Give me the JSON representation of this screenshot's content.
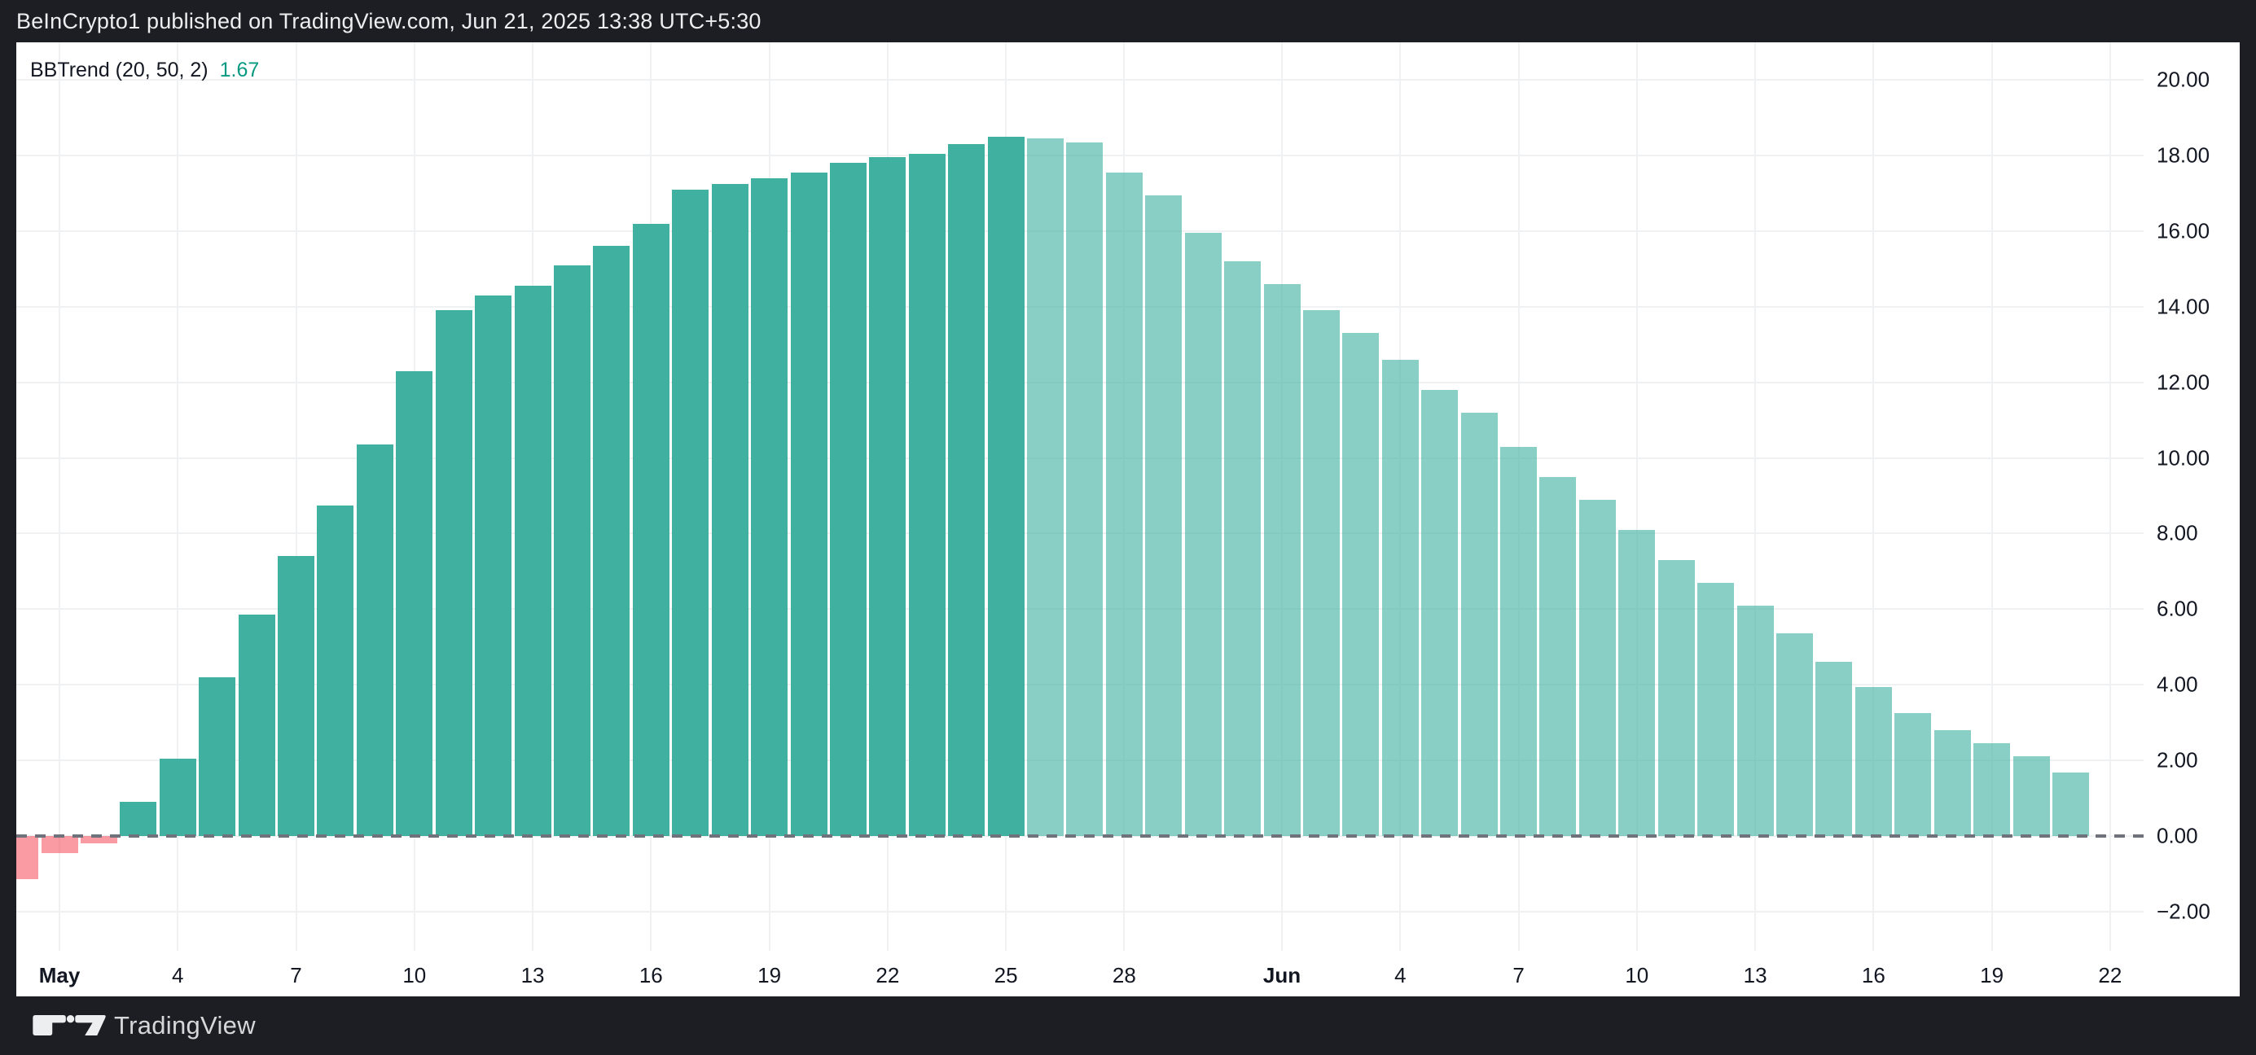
{
  "header": {
    "title": "BeInCrypto1 published on TradingView.com, Jun 21, 2025 13:38 UTC+5:30"
  },
  "indicator": {
    "label": "BBTrend (20, 50, 2)",
    "value": "1.67"
  },
  "footer": {
    "brand": "TradingView",
    "logo_icon": "tradingview-logo"
  },
  "colors": {
    "bg_dark": "#1C1E24",
    "panel_bg": "#FFFFFF",
    "text_light": "#EDEEF0",
    "text_dark": "#131722",
    "footer_text": "#D6D7D9",
    "value_green": "#089981",
    "bar_rise": "#40B1A1",
    "bar_fall": "rgba(64,177,161,0.62)",
    "bar_neg": "rgba(247,83,97,0.58)",
    "grid": "#F0F1F3",
    "zero_line": "#6F727B"
  },
  "chart_data": {
    "type": "bar",
    "title": "BBTrend (20, 50, 2)",
    "ylabel": "",
    "xlabel": "",
    "grid": true,
    "ylim": [
      -3.0,
      21.0
    ],
    "zero_line_value": 0,
    "y_ticks": [
      {
        "value": 20,
        "label": "20.00"
      },
      {
        "value": 18,
        "label": "18.00"
      },
      {
        "value": 16,
        "label": "16.00"
      },
      {
        "value": 14,
        "label": "14.00"
      },
      {
        "value": 12,
        "label": "12.00"
      },
      {
        "value": 10,
        "label": "10.00"
      },
      {
        "value": 8,
        "label": "8.00"
      },
      {
        "value": 6,
        "label": "6.00"
      },
      {
        "value": 4,
        "label": "4.00"
      },
      {
        "value": 2,
        "label": "2.00"
      },
      {
        "value": 0,
        "label": "0.00"
      },
      {
        "value": -2,
        "label": "−2.00"
      }
    ],
    "x_ticks": [
      {
        "index": 1,
        "label": "May",
        "bold": true
      },
      {
        "index": 4,
        "label": "4",
        "bold": false
      },
      {
        "index": 7,
        "label": "7",
        "bold": false
      },
      {
        "index": 10,
        "label": "10",
        "bold": false
      },
      {
        "index": 13,
        "label": "13",
        "bold": false
      },
      {
        "index": 16,
        "label": "16",
        "bold": false
      },
      {
        "index": 19,
        "label": "19",
        "bold": false
      },
      {
        "index": 22,
        "label": "22",
        "bold": false
      },
      {
        "index": 25,
        "label": "25",
        "bold": false
      },
      {
        "index": 28,
        "label": "28",
        "bold": false
      },
      {
        "index": 32,
        "label": "Jun",
        "bold": true
      },
      {
        "index": 35,
        "label": "4",
        "bold": false
      },
      {
        "index": 38,
        "label": "7",
        "bold": false
      },
      {
        "index": 41,
        "label": "10",
        "bold": false
      },
      {
        "index": 44,
        "label": "13",
        "bold": false
      },
      {
        "index": 47,
        "label": "16",
        "bold": false
      },
      {
        "index": 50,
        "label": "19",
        "bold": false
      },
      {
        "index": 53,
        "label": "22",
        "bold": false
      }
    ],
    "bars": [
      {
        "date": "Apr 30",
        "value": -1.15,
        "state": "neg"
      },
      {
        "date": "May 1",
        "value": -0.45,
        "state": "neg"
      },
      {
        "date": "May 2",
        "value": -0.2,
        "state": "neg"
      },
      {
        "date": "May 3",
        "value": 0.9,
        "state": "rise"
      },
      {
        "date": "May 4",
        "value": 2.05,
        "state": "rise"
      },
      {
        "date": "May 5",
        "value": 4.2,
        "state": "rise"
      },
      {
        "date": "May 6",
        "value": 5.85,
        "state": "rise"
      },
      {
        "date": "May 7",
        "value": 7.4,
        "state": "rise"
      },
      {
        "date": "May 8",
        "value": 8.75,
        "state": "rise"
      },
      {
        "date": "May 9",
        "value": 10.35,
        "state": "rise"
      },
      {
        "date": "May 10",
        "value": 12.3,
        "state": "rise"
      },
      {
        "date": "May 11",
        "value": 13.9,
        "state": "rise"
      },
      {
        "date": "May 12",
        "value": 14.3,
        "state": "rise"
      },
      {
        "date": "May 13",
        "value": 14.55,
        "state": "rise"
      },
      {
        "date": "May 14",
        "value": 15.1,
        "state": "rise"
      },
      {
        "date": "May 15",
        "value": 15.6,
        "state": "rise"
      },
      {
        "date": "May 16",
        "value": 16.2,
        "state": "rise"
      },
      {
        "date": "May 17",
        "value": 17.1,
        "state": "rise"
      },
      {
        "date": "May 18",
        "value": 17.25,
        "state": "rise"
      },
      {
        "date": "May 19",
        "value": 17.4,
        "state": "rise"
      },
      {
        "date": "May 20",
        "value": 17.55,
        "state": "rise"
      },
      {
        "date": "May 21",
        "value": 17.8,
        "state": "rise"
      },
      {
        "date": "May 22",
        "value": 17.95,
        "state": "rise"
      },
      {
        "date": "May 23",
        "value": 18.05,
        "state": "rise"
      },
      {
        "date": "May 24",
        "value": 18.3,
        "state": "rise"
      },
      {
        "date": "May 25",
        "value": 18.5,
        "state": "rise"
      },
      {
        "date": "May 26",
        "value": 18.45,
        "state": "fall"
      },
      {
        "date": "May 27",
        "value": 18.35,
        "state": "fall"
      },
      {
        "date": "May 28",
        "value": 17.55,
        "state": "fall"
      },
      {
        "date": "May 29",
        "value": 16.95,
        "state": "fall"
      },
      {
        "date": "May 30",
        "value": 15.95,
        "state": "fall"
      },
      {
        "date": "May 31",
        "value": 15.2,
        "state": "fall"
      },
      {
        "date": "Jun 1",
        "value": 14.6,
        "state": "fall"
      },
      {
        "date": "Jun 2",
        "value": 13.9,
        "state": "fall"
      },
      {
        "date": "Jun 3",
        "value": 13.3,
        "state": "fall"
      },
      {
        "date": "Jun 4",
        "value": 12.6,
        "state": "fall"
      },
      {
        "date": "Jun 5",
        "value": 11.8,
        "state": "fall"
      },
      {
        "date": "Jun 6",
        "value": 11.2,
        "state": "fall"
      },
      {
        "date": "Jun 7",
        "value": 10.3,
        "state": "fall"
      },
      {
        "date": "Jun 8",
        "value": 9.5,
        "state": "fall"
      },
      {
        "date": "Jun 9",
        "value": 8.9,
        "state": "fall"
      },
      {
        "date": "Jun 10",
        "value": 8.1,
        "state": "fall"
      },
      {
        "date": "Jun 11",
        "value": 7.3,
        "state": "fall"
      },
      {
        "date": "Jun 12",
        "value": 6.7,
        "state": "fall"
      },
      {
        "date": "Jun 13",
        "value": 6.1,
        "state": "fall"
      },
      {
        "date": "Jun 14",
        "value": 5.35,
        "state": "fall"
      },
      {
        "date": "Jun 15",
        "value": 4.6,
        "state": "fall"
      },
      {
        "date": "Jun 16",
        "value": 3.95,
        "state": "fall"
      },
      {
        "date": "Jun 17",
        "value": 3.25,
        "state": "fall"
      },
      {
        "date": "Jun 18",
        "value": 2.8,
        "state": "fall"
      },
      {
        "date": "Jun 19",
        "value": 2.45,
        "state": "fall"
      },
      {
        "date": "Jun 20",
        "value": 2.1,
        "state": "fall"
      },
      {
        "date": "Jun 21",
        "value": 1.67,
        "state": "fall"
      }
    ]
  }
}
